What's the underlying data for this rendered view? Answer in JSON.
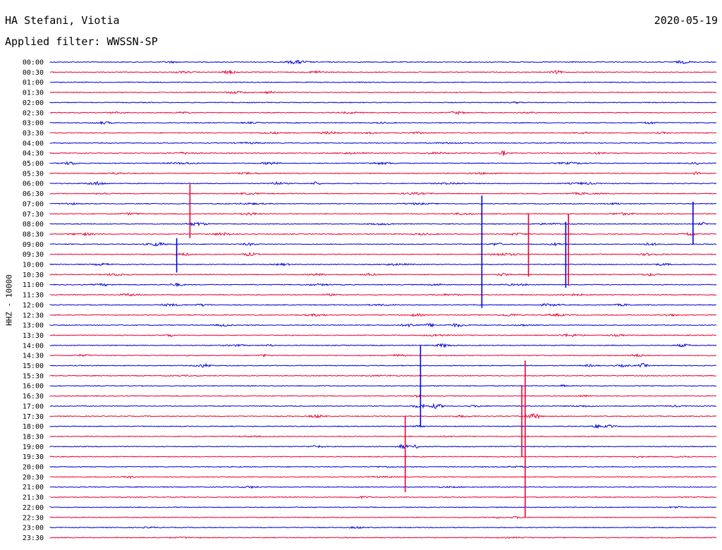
{
  "header": {
    "station": "HA Stefani, Viotia",
    "date": "2020-05-19",
    "filter_label": "Applied filter: WWSSN-SP"
  },
  "colors": {
    "trace_a": "#0000dd",
    "trace_b": "#ee0033"
  },
  "chart_data": {
    "type": "line",
    "title": "HA Stefani, Viotia",
    "ylabel": "HHZ - 10000",
    "xlabel": "",
    "grid": false,
    "legend": "none",
    "row_labels": [
      "00:00",
      "00:30",
      "01:00",
      "01:30",
      "02:00",
      "02:30",
      "03:00",
      "03:30",
      "04:00",
      "04:30",
      "05:00",
      "05:30",
      "06:00",
      "06:30",
      "07:00",
      "07:30",
      "08:00",
      "08:30",
      "09:00",
      "09:30",
      "10:00",
      "10:30",
      "11:00",
      "11:30",
      "12:00",
      "12:30",
      "13:00",
      "13:30",
      "14:00",
      "14:30",
      "15:00",
      "15:30",
      "16:00",
      "16:30",
      "17:00",
      "17:30",
      "18:00",
      "18:30",
      "19:00",
      "19:30",
      "20:00",
      "20:30",
      "21:00",
      "21:30",
      "22:00",
      "22:30",
      "23:00",
      "23:30"
    ],
    "bursts": [
      [
        [
          0.18,
          10,
          0.9
        ],
        [
          0.37,
          14,
          2.2
        ],
        [
          0.95,
          10,
          1.6
        ]
      ],
      [
        [
          0.2,
          12,
          1.0
        ],
        [
          0.27,
          10,
          2.0
        ],
        [
          0.4,
          10,
          1.6
        ],
        [
          0.76,
          8,
          1.8
        ]
      ],
      [],
      [
        [
          0.28,
          14,
          1.2
        ],
        [
          0.33,
          8,
          1.4
        ]
      ],
      [
        [
          0.7,
          8,
          0.7
        ]
      ],
      [
        [
          0.1,
          14,
          0.8
        ],
        [
          0.2,
          10,
          1.0
        ],
        [
          0.45,
          14,
          0.9
        ],
        [
          0.61,
          10,
          1.6
        ],
        [
          0.72,
          10,
          0.9
        ]
      ],
      [
        [
          0.08,
          14,
          1.2
        ],
        [
          0.3,
          12,
          0.7
        ],
        [
          0.5,
          10,
          0.8
        ],
        [
          0.9,
          10,
          1.4
        ]
      ],
      [
        [
          0.33,
          18,
          1.0
        ],
        [
          0.42,
          14,
          1.4
        ],
        [
          0.48,
          10,
          0.8
        ],
        [
          0.55,
          18,
          0.9
        ],
        [
          0.8,
          14,
          1.0
        ],
        [
          0.92,
          10,
          0.8
        ]
      ],
      [
        [
          0.3,
          20,
          0.7
        ],
        [
          0.6,
          18,
          0.7
        ]
      ],
      [
        [
          0.2,
          20,
          1.0
        ],
        [
          0.45,
          18,
          0.8
        ],
        [
          0.58,
          16,
          1.0
        ],
        [
          0.68,
          4,
          3.5
        ],
        [
          0.82,
          16,
          1.0
        ]
      ],
      [
        [
          0.03,
          10,
          1.8
        ],
        [
          0.2,
          20,
          1.0
        ],
        [
          0.33,
          12,
          1.4
        ],
        [
          0.5,
          20,
          1.0
        ],
        [
          0.78,
          20,
          1.0
        ],
        [
          0.97,
          10,
          1.0
        ]
      ],
      [
        [
          0.1,
          16,
          1.0
        ],
        [
          0.3,
          20,
          0.8
        ],
        [
          0.65,
          20,
          0.8
        ],
        [
          0.97,
          4,
          2.0
        ]
      ],
      [
        [
          0.07,
          12,
          2.0
        ],
        [
          0.34,
          10,
          1.8
        ],
        [
          0.4,
          6,
          2.2
        ],
        [
          0.6,
          20,
          0.9
        ],
        [
          0.8,
          20,
          1.0
        ]
      ],
      [
        [
          0.08,
          10,
          1.2
        ],
        [
          0.3,
          20,
          0.9
        ],
        [
          0.55,
          20,
          1.0
        ],
        [
          0.8,
          20,
          1.0
        ]
      ],
      [
        [
          0.03,
          10,
          1.2
        ],
        [
          0.3,
          20,
          0.8
        ],
        [
          0.55,
          20,
          0.9
        ],
        [
          0.85,
          10,
          1.0
        ]
      ],
      [
        [
          0.12,
          14,
          1.0
        ],
        [
          0.3,
          12,
          1.4
        ],
        [
          0.62,
          14,
          1.2
        ],
        [
          0.86,
          16,
          1.2
        ]
      ],
      [
        [
          0.22,
          14,
          2.0
        ],
        [
          0.5,
          20,
          0.8
        ],
        [
          0.75,
          20,
          0.9
        ],
        [
          0.98,
          6,
          2.0
        ]
      ],
      [
        [
          0.05,
          16,
          1.4
        ],
        [
          0.26,
          14,
          1.6
        ],
        [
          0.56,
          14,
          1.0
        ],
        [
          0.7,
          12,
          1.2
        ],
        [
          0.96,
          10,
          2.0
        ]
      ],
      [
        [
          0.16,
          12,
          2.2
        ],
        [
          0.3,
          10,
          1.4
        ],
        [
          0.67,
          8,
          1.6
        ],
        [
          0.76,
          8,
          1.6
        ],
        [
          0.9,
          12,
          1.4
        ]
      ],
      [
        [
          0.2,
          10,
          1.6
        ],
        [
          0.3,
          10,
          1.8
        ],
        [
          0.68,
          18,
          1.6
        ],
        [
          0.9,
          16,
          1.2
        ]
      ],
      [
        [
          0.08,
          12,
          1.2
        ],
        [
          0.35,
          10,
          1.2
        ],
        [
          0.52,
          20,
          0.9
        ],
        [
          0.92,
          10,
          1.2
        ]
      ],
      [
        [
          0.1,
          14,
          1.4
        ],
        [
          0.4,
          12,
          1.2
        ],
        [
          0.48,
          10,
          1.4
        ],
        [
          0.68,
          8,
          1.8
        ],
        [
          0.9,
          10,
          1.4
        ]
      ],
      [
        [
          0.08,
          12,
          1.2
        ],
        [
          0.19,
          10,
          1.6
        ],
        [
          0.4,
          20,
          0.9
        ],
        [
          0.58,
          12,
          1.0
        ],
        [
          0.7,
          20,
          0.8
        ]
      ],
      [
        [
          0.12,
          14,
          1.4
        ],
        [
          0.42,
          10,
          1.0
        ],
        [
          0.6,
          20,
          0.8
        ],
        [
          0.78,
          20,
          1.0
        ]
      ],
      [
        [
          0.18,
          14,
          1.2
        ],
        [
          0.23,
          10,
          1.4
        ],
        [
          0.5,
          20,
          0.7
        ],
        [
          0.75,
          16,
          1.2
        ],
        [
          0.86,
          10,
          1.2
        ]
      ],
      [
        [
          0.4,
          14,
          1.2
        ],
        [
          0.55,
          10,
          1.4
        ],
        [
          0.69,
          12,
          1.4
        ],
        [
          0.76,
          14,
          1.2
        ],
        [
          0.93,
          10,
          1.2
        ]
      ],
      [
        [
          0.26,
          10,
          1.2
        ],
        [
          0.54,
          12,
          1.6
        ],
        [
          0.57,
          6,
          2.2
        ],
        [
          0.61,
          10,
          2.0
        ],
        [
          0.71,
          10,
          0.8
        ]
      ],
      [
        [
          0.18,
          4,
          2.0
        ],
        [
          0.58,
          14,
          1.2
        ],
        [
          0.78,
          14,
          1.6
        ],
        [
          0.85,
          12,
          1.0
        ]
      ],
      [
        [
          0.28,
          14,
          0.9
        ],
        [
          0.33,
          8,
          1.0
        ],
        [
          0.59,
          10,
          2.0
        ],
        [
          0.95,
          10,
          1.6
        ]
      ],
      [
        [
          0.05,
          12,
          1.0
        ],
        [
          0.32,
          8,
          1.2
        ],
        [
          0.52,
          12,
          1.2
        ],
        [
          0.88,
          12,
          1.4
        ]
      ],
      [
        [
          0.23,
          10,
          2.2
        ],
        [
          0.81,
          10,
          1.2
        ],
        [
          0.86,
          10,
          1.2
        ],
        [
          0.89,
          6,
          2.6
        ]
      ],
      [
        [
          0.2,
          20,
          0.5
        ],
        [
          0.5,
          20,
          0.5
        ]
      ],
      [
        [
          0.77,
          3,
          1.6
        ]
      ],
      [
        [
          0.55,
          8,
          1.2
        ],
        [
          0.8,
          10,
          0.9
        ]
      ],
      [
        [
          0.55,
          8,
          1.2
        ],
        [
          0.56,
          4,
          2.2
        ],
        [
          0.58,
          8,
          3.0
        ],
        [
          0.64,
          12,
          0.8
        ],
        [
          0.8,
          14,
          0.8
        ],
        [
          0.94,
          10,
          0.8
        ]
      ],
      [
        [
          0.4,
          10,
          1.6
        ],
        [
          0.62,
          12,
          1.2
        ],
        [
          0.72,
          10,
          2.0
        ],
        [
          0.73,
          6,
          2.4
        ]
      ],
      [
        [
          0.55,
          10,
          0.9
        ],
        [
          0.82,
          4,
          2.6
        ],
        [
          0.84,
          8,
          1.6
        ]
      ],
      [
        [
          0.3,
          20,
          0.5
        ],
        [
          0.6,
          20,
          0.5
        ]
      ],
      [
        [
          0.4,
          10,
          1.2
        ],
        [
          0.53,
          8,
          2.6
        ],
        [
          0.55,
          6,
          1.8
        ]
      ],
      [
        [
          0.88,
          12,
          0.7
        ],
        [
          0.95,
          10,
          1.4
        ]
      ],
      [
        [
          0.5,
          20,
          0.6
        ],
        [
          0.7,
          20,
          0.5
        ]
      ],
      [
        [
          0.12,
          10,
          1.0
        ],
        [
          0.5,
          20,
          0.6
        ]
      ],
      [
        [
          0.3,
          10,
          1.2
        ],
        [
          0.6,
          20,
          0.5
        ]
      ],
      [
        [
          0.47,
          10,
          1.0
        ]
      ],
      [
        [
          0.94,
          10,
          1.0
        ]
      ],
      [
        [
          0.67,
          10,
          0.8
        ],
        [
          0.7,
          8,
          1.0
        ]
      ],
      [
        [
          0.15,
          10,
          0.7
        ],
        [
          0.46,
          10,
          1.0
        ]
      ],
      [
        [
          0.2,
          20,
          0.5
        ],
        [
          0.7,
          20,
          0.5
        ]
      ]
    ],
    "spikes": [
      {
        "row": 15,
        "x": 0.21,
        "up": 3.0,
        "down": 2.4
      },
      {
        "row": 18,
        "x": 0.19,
        "up": 0.6,
        "down": 2.8
      },
      {
        "row": 14,
        "x": 0.648,
        "up": 0.8,
        "down": 10.3
      },
      {
        "row": 15,
        "x": 0.718,
        "up": 0.0,
        "down": 6.2
      },
      {
        "row": 16,
        "x": 0.774,
        "up": 0.2,
        "down": 6.3
      },
      {
        "row": 15,
        "x": 0.778,
        "up": 0.0,
        "down": 7.1
      },
      {
        "row": 14,
        "x": 0.965,
        "up": 0.2,
        "down": 4.0
      },
      {
        "row": 28,
        "x": 0.556,
        "up": 0.0,
        "down": 8.1
      },
      {
        "row": 35,
        "x": 0.533,
        "up": 0.0,
        "down": 7.5
      },
      {
        "row": 35,
        "x": 0.713,
        "up": 5.5,
        "down": 10.0
      },
      {
        "row": 35,
        "x": 0.708,
        "up": 3.0,
        "down": 4.0
      }
    ]
  }
}
